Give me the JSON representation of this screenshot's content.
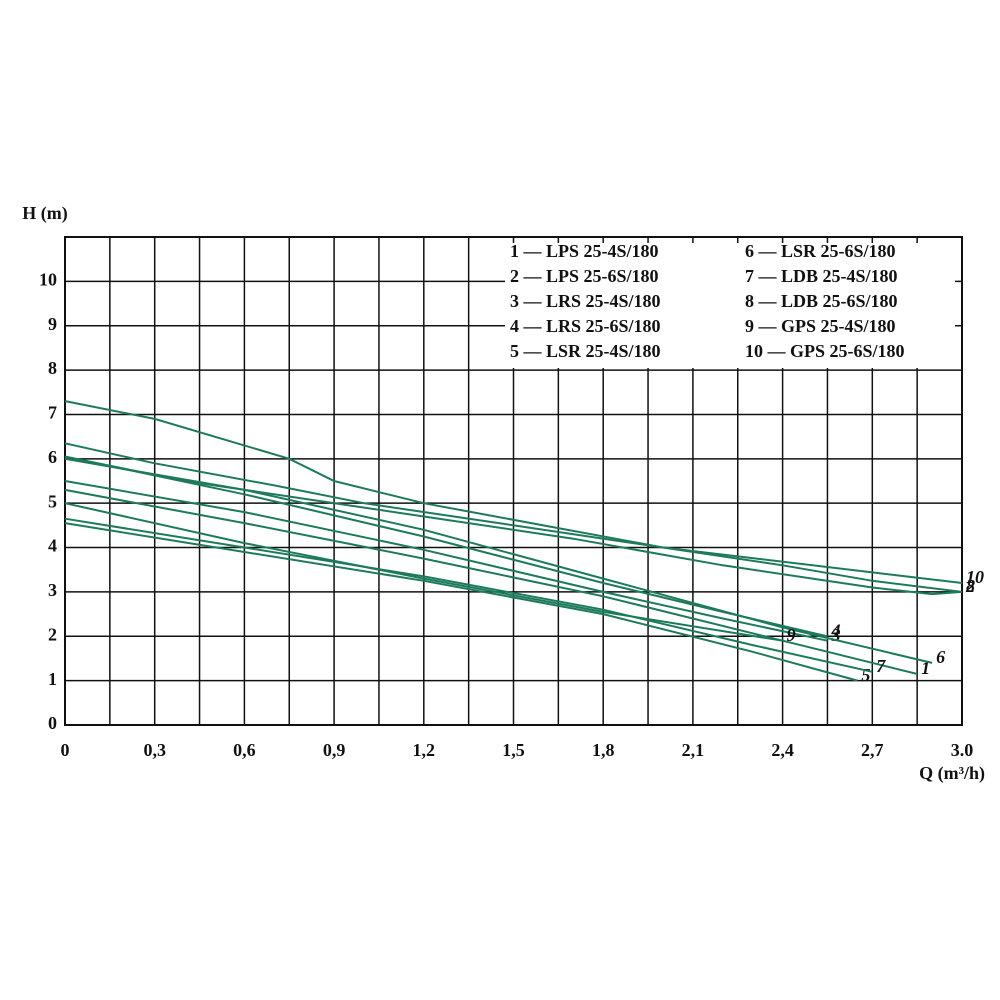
{
  "chart_data": {
    "type": "line",
    "y_label": "H (m)",
    "x_label": "Q (m³/h)",
    "xlim": [
      0,
      3.0
    ],
    "ylim": [
      0,
      11
    ],
    "xticks": [
      0,
      {
        "value": 0.3,
        "label": "0,3"
      },
      {
        "value": 0.6,
        "label": "0,6"
      },
      {
        "value": 0.9,
        "label": "0,9"
      },
      {
        "value": 1.2,
        "label": "1,2"
      },
      {
        "value": 1.5,
        "label": "1,5"
      },
      {
        "value": 1.8,
        "label": "1,8"
      },
      {
        "value": 2.1,
        "label": "2,1"
      },
      {
        "value": 2.4,
        "label": "2,4"
      },
      {
        "value": 2.7,
        "label": "2,7"
      },
      {
        "value": 3.0,
        "label": "3.0"
      }
    ],
    "yticks": [
      0,
      1,
      2,
      3,
      4,
      5,
      6,
      7,
      8,
      9,
      10
    ],
    "grid": true,
    "series": [
      {
        "name": "1 — LPS 25-4S/180",
        "tag": "1",
        "color": "#1e7a5c",
        "x": [
          0,
          0.6,
          1.2,
          1.8,
          2.4,
          2.85
        ],
        "values": [
          5.3,
          4.55,
          3.75,
          2.9,
          1.9,
          1.15
        ]
      },
      {
        "name": "2 — LPS 25-6S/180",
        "tag": "2",
        "color": "#1e7a5c",
        "x": [
          0,
          0.3,
          0.7,
          1.0,
          1.4,
          1.9,
          2.4,
          2.7,
          3.0
        ],
        "values": [
          6.35,
          5.9,
          5.4,
          5.0,
          4.6,
          4.1,
          3.6,
          3.25,
          3.0
        ]
      },
      {
        "name": "3 — LRS 25-4S/180",
        "tag": "3",
        "color": "#1e7a5c",
        "x": [
          0,
          0.6,
          1.2,
          1.8,
          2.2,
          2.55
        ],
        "values": [
          5.5,
          4.8,
          3.95,
          3.0,
          2.4,
          1.9
        ]
      },
      {
        "name": "4 — LRS 25-6S/180",
        "tag": "4",
        "color": "#1e7a5c",
        "x": [
          0,
          0.6,
          1.2,
          1.8,
          2.2,
          2.55
        ],
        "values": [
          6.05,
          5.2,
          4.25,
          3.2,
          2.55,
          2.0
        ]
      },
      {
        "name": "5 — LSR 25-4S/180",
        "tag": "5",
        "color": "#1e7a5c",
        "x": [
          0,
          0.6,
          1.2,
          1.8,
          2.3,
          2.65
        ],
        "values": [
          4.55,
          3.9,
          3.25,
          2.5,
          1.65,
          1.0
        ]
      },
      {
        "name": "6 — LSR 25-6S/180",
        "tag": "6",
        "color": "#1e7a5c",
        "x": [
          0,
          0.6,
          1.2,
          1.8,
          2.4,
          2.9
        ],
        "values": [
          6.0,
          5.3,
          4.4,
          3.3,
          2.2,
          1.4
        ]
      },
      {
        "name": "7 — LDB 25-4S/180",
        "tag": "7",
        "color": "#1e7a5c",
        "x": [
          0,
          0.6,
          1.2,
          1.8,
          2.3,
          2.7
        ],
        "values": [
          4.65,
          4.0,
          3.35,
          2.6,
          1.8,
          1.2
        ]
      },
      {
        "name": "8 — LDB 25-6S/180",
        "tag": "8",
        "color": "#1e7a5c",
        "x": [
          0,
          0.4,
          0.8,
          1.2,
          1.7,
          2.2,
          2.7,
          2.9,
          3.0
        ],
        "values": [
          6.05,
          5.5,
          5.1,
          4.7,
          4.2,
          3.6,
          3.1,
          2.95,
          3.0
        ]
      },
      {
        "name": "9 — GPS 25-4S/180",
        "tag": "9",
        "color": "#1e7a5c",
        "x": [
          0,
          0.6,
          1.2,
          1.8,
          2.4
        ],
        "values": [
          5.0,
          4.1,
          3.3,
          2.55,
          1.9
        ]
      },
      {
        "name": "10 — GPS 25-6S/180",
        "tag": "10",
        "color": "#1e7a5c",
        "x": [
          0,
          0.3,
          0.75,
          0.9,
          1.2,
          1.6,
          2.0,
          2.5,
          3.0
        ],
        "values": [
          7.3,
          6.9,
          6.0,
          5.5,
          5.0,
          4.5,
          4.0,
          3.6,
          3.2
        ]
      }
    ]
  }
}
